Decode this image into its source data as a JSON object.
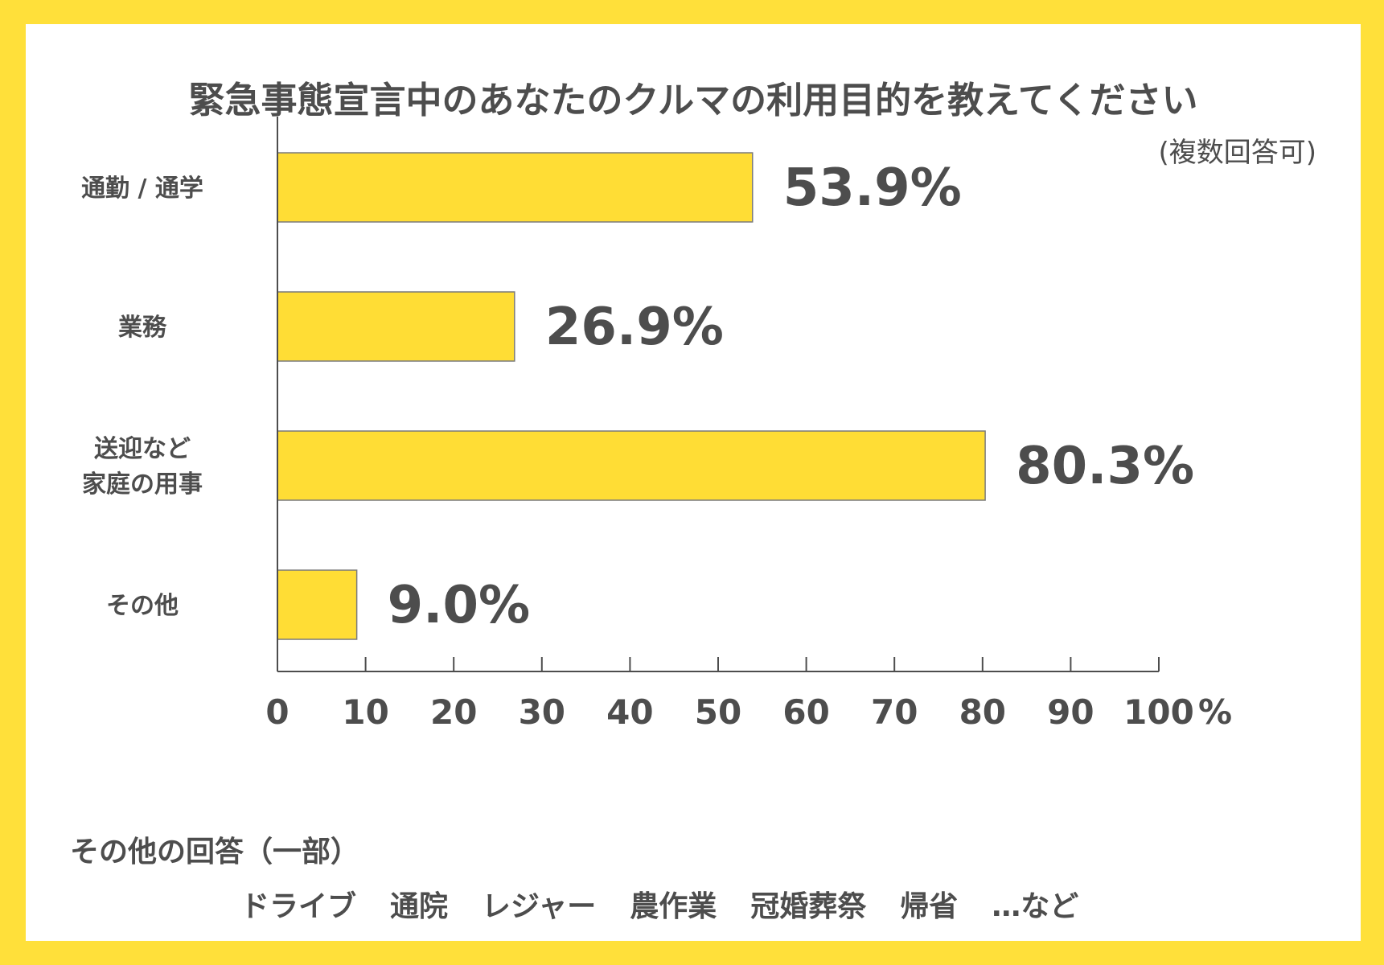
{
  "chart_data": {
    "type": "bar",
    "orientation": "horizontal",
    "title": "緊急事態宣言中のあなたのクルマの利用目的を教えてください",
    "note": "(複数回答可)",
    "categories": [
      [
        "通勤 / 通学"
      ],
      [
        "業務"
      ],
      [
        "送迎など",
        "家庭の用事"
      ],
      [
        "その他"
      ]
    ],
    "values": [
      53.9,
      26.9,
      80.3,
      9.0
    ],
    "value_labels": [
      "53.9%",
      "26.9%",
      "80.3%",
      "9.0%"
    ],
    "xlim": [
      0,
      100
    ],
    "x_ticks": [
      "0",
      "10",
      "20",
      "30",
      "40",
      "50",
      "60",
      "70",
      "80",
      "90",
      "100"
    ],
    "x_unit": "%",
    "grid": false,
    "colors": {
      "bar": "#FFDD35",
      "bar_border": "#7A7A7A",
      "background": "#FFE03A"
    }
  },
  "other_answers": {
    "title": "その他の回答（一部）",
    "items": [
      "ドライブ",
      "通院",
      "レジャー",
      "農作業",
      "冠婚葬祭",
      "帰省",
      "…など"
    ]
  }
}
